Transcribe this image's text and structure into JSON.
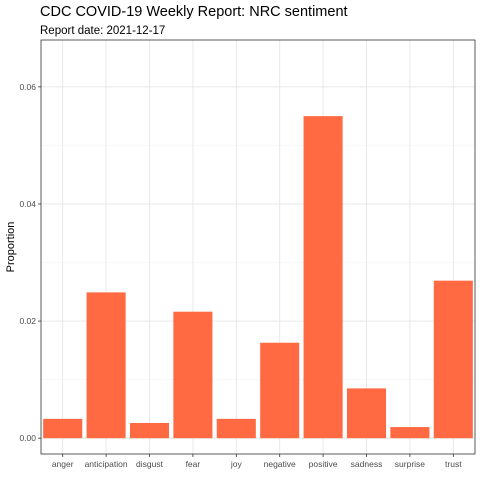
{
  "chart_data": {
    "type": "bar",
    "title": "CDC COVID-19 Weekly Report: NRC sentiment",
    "subtitle": "Report date: 2021-12-17",
    "xlabel": "",
    "ylabel": "Proportion",
    "categories": [
      "anger",
      "anticipation",
      "disgust",
      "fear",
      "joy",
      "negative",
      "positive",
      "sadness",
      "surprise",
      "trust"
    ],
    "values": [
      0.0033,
      0.0249,
      0.0026,
      0.0216,
      0.0033,
      0.0163,
      0.055,
      0.0085,
      0.0019,
      0.0269
    ],
    "yticks": [
      0,
      0.02,
      0.04,
      0.06
    ],
    "ytick_labels": [
      "0.00",
      "0.02",
      "0.04",
      "0.06"
    ],
    "ylim": [
      -0.0027,
      0.068
    ],
    "grid": true,
    "bar_color": "#FF6A42"
  }
}
